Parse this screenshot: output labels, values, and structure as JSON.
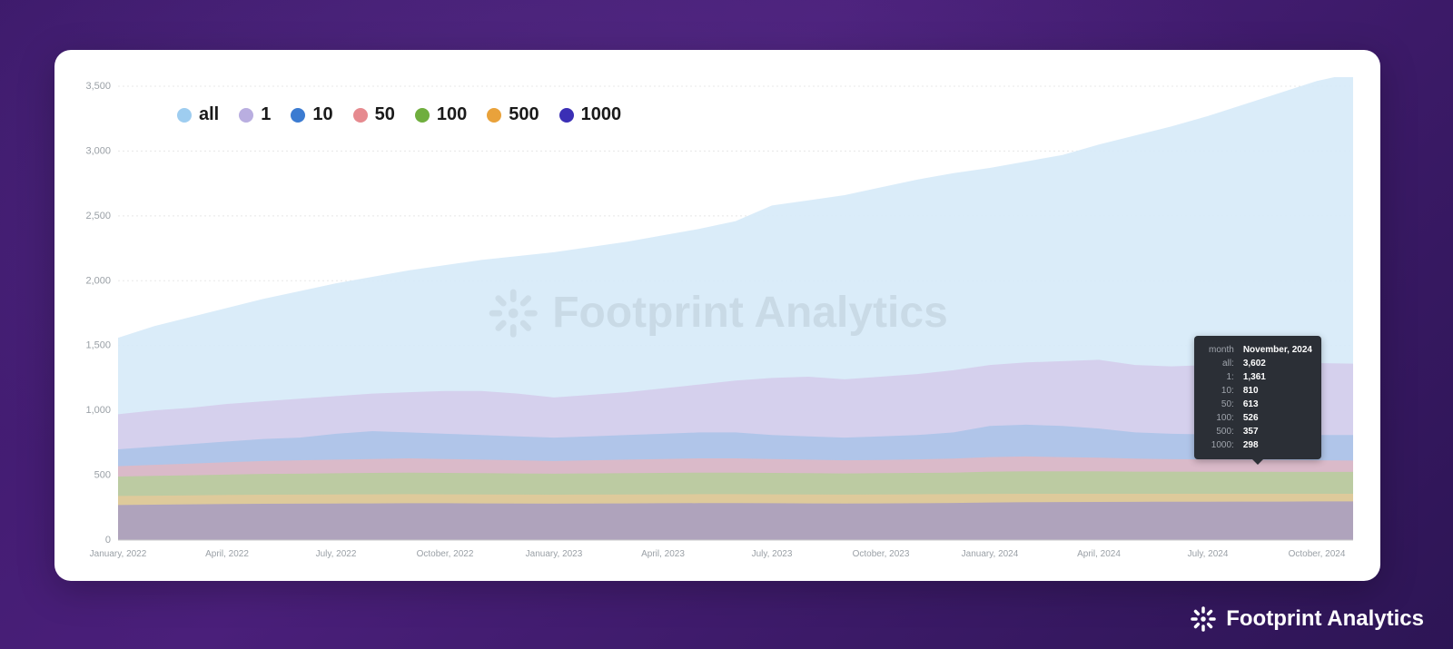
{
  "brand": {
    "name": "Footprint Analytics"
  },
  "watermark": {
    "text": "Footprint Analytics"
  },
  "chart": {
    "type": "area",
    "background_color": "#ffffff",
    "grid_color": "#e8e8e8",
    "axis_label_color": "#9aa0a6",
    "ylim": [
      0,
      3500
    ],
    "ytick_step": 500,
    "yticks": [
      "0",
      "500",
      "1,000",
      "1,500",
      "2,000",
      "2,500",
      "3,000",
      "3,500"
    ],
    "x_labels": [
      "January, 2022",
      "April, 2022",
      "July, 2022",
      "October, 2022",
      "January, 2023",
      "April, 2023",
      "July, 2023",
      "October, 2023",
      "January, 2024",
      "April, 2024",
      "July, 2024",
      "October, 2024"
    ],
    "x_label_every": 3,
    "categories": [
      "2022-01",
      "2022-02",
      "2022-03",
      "2022-04",
      "2022-05",
      "2022-06",
      "2022-07",
      "2022-08",
      "2022-09",
      "2022-10",
      "2022-11",
      "2022-12",
      "2023-01",
      "2023-02",
      "2023-03",
      "2023-04",
      "2023-05",
      "2023-06",
      "2023-07",
      "2023-08",
      "2023-09",
      "2023-10",
      "2023-11",
      "2023-12",
      "2024-01",
      "2024-02",
      "2024-03",
      "2024-04",
      "2024-05",
      "2024-06",
      "2024-07",
      "2024-08",
      "2024-09",
      "2024-10",
      "2024-11"
    ],
    "series": [
      {
        "key": "all",
        "label": "all",
        "color": "#9ecdf0",
        "fill": "#d6eaf8",
        "fill_opacity": 0.9,
        "values": [
          1560,
          1650,
          1720,
          1790,
          1860,
          1920,
          1980,
          2030,
          2080,
          2120,
          2160,
          2190,
          2220,
          2260,
          2300,
          2350,
          2400,
          2460,
          2580,
          2620,
          2660,
          2720,
          2780,
          2830,
          2870,
          2920,
          2970,
          3050,
          3120,
          3190,
          3270,
          3360,
          3450,
          3540,
          3602
        ]
      },
      {
        "key": "s1",
        "label": "1",
        "color": "#b9aee0",
        "fill": "#d3cbeb",
        "fill_opacity": 0.85,
        "values": [
          970,
          1000,
          1020,
          1050,
          1070,
          1090,
          1110,
          1130,
          1140,
          1150,
          1150,
          1130,
          1100,
          1120,
          1140,
          1170,
          1200,
          1230,
          1250,
          1260,
          1240,
          1260,
          1280,
          1310,
          1350,
          1370,
          1380,
          1390,
          1350,
          1340,
          1350,
          1355,
          1360,
          1365,
          1361
        ]
      },
      {
        "key": "s10",
        "label": "10",
        "color": "#3b7bd1",
        "fill": "#a9c3e8",
        "fill_opacity": 0.85,
        "values": [
          700,
          720,
          740,
          760,
          780,
          790,
          820,
          840,
          830,
          820,
          810,
          800,
          790,
          800,
          810,
          820,
          830,
          830,
          810,
          800,
          790,
          800,
          810,
          830,
          880,
          890,
          880,
          860,
          830,
          820,
          815,
          812,
          810,
          810,
          810
        ]
      },
      {
        "key": "s50",
        "label": "50",
        "color": "#e68a8f",
        "fill": "#e2b7c3",
        "fill_opacity": 0.85,
        "values": [
          570,
          580,
          590,
          600,
          610,
          615,
          620,
          625,
          630,
          625,
          620,
          615,
          610,
          615,
          620,
          625,
          630,
          630,
          625,
          620,
          615,
          618,
          622,
          628,
          640,
          645,
          640,
          635,
          628,
          624,
          622,
          620,
          618,
          615,
          613
        ]
      },
      {
        "key": "s100",
        "label": "100",
        "color": "#6fae3e",
        "fill": "#b6ce9b",
        "fill_opacity": 0.85,
        "values": [
          490,
          495,
          500,
          505,
          510,
          512,
          515,
          518,
          520,
          518,
          516,
          514,
          512,
          514,
          516,
          518,
          520,
          520,
          518,
          516,
          514,
          516,
          518,
          520,
          528,
          530,
          530,
          530,
          528,
          528,
          527,
          527,
          526,
          526,
          526
        ]
      },
      {
        "key": "s500",
        "label": "500",
        "color": "#e9a23b",
        "fill": "#e6c99a",
        "fill_opacity": 0.8,
        "values": [
          340,
          342,
          345,
          348,
          350,
          351,
          352,
          353,
          354,
          353,
          352,
          351,
          350,
          351,
          352,
          353,
          354,
          354,
          353,
          352,
          351,
          352,
          353,
          354,
          356,
          357,
          357,
          357,
          357,
          357,
          357,
          357,
          357,
          357,
          357
        ]
      },
      {
        "key": "s1000",
        "label": "1000",
        "color": "#3b2fb5",
        "fill": "#9f95c7",
        "fill_opacity": 0.75,
        "values": [
          270,
          273,
          276,
          278,
          280,
          281,
          282,
          283,
          284,
          284,
          283,
          282,
          281,
          282,
          283,
          284,
          285,
          285,
          284,
          283,
          282,
          283,
          284,
          286,
          290,
          292,
          293,
          294,
          295,
          296,
          296,
          297,
          297,
          298,
          298
        ]
      }
    ],
    "legend": {
      "fontsize": 20,
      "fontweight": 700
    },
    "axis_fontsize": 10
  },
  "tooltip": {
    "title_key": "month",
    "title_value": "November, 2024",
    "rows": [
      {
        "k": "all",
        "v": "3,602"
      },
      {
        "k": "1",
        "v": "1,361"
      },
      {
        "k": "10",
        "v": "810"
      },
      {
        "k": "50",
        "v": "613"
      },
      {
        "k": "100",
        "v": "526"
      },
      {
        "k": "500",
        "v": "357"
      },
      {
        "k": "1000",
        "v": "298"
      }
    ]
  }
}
